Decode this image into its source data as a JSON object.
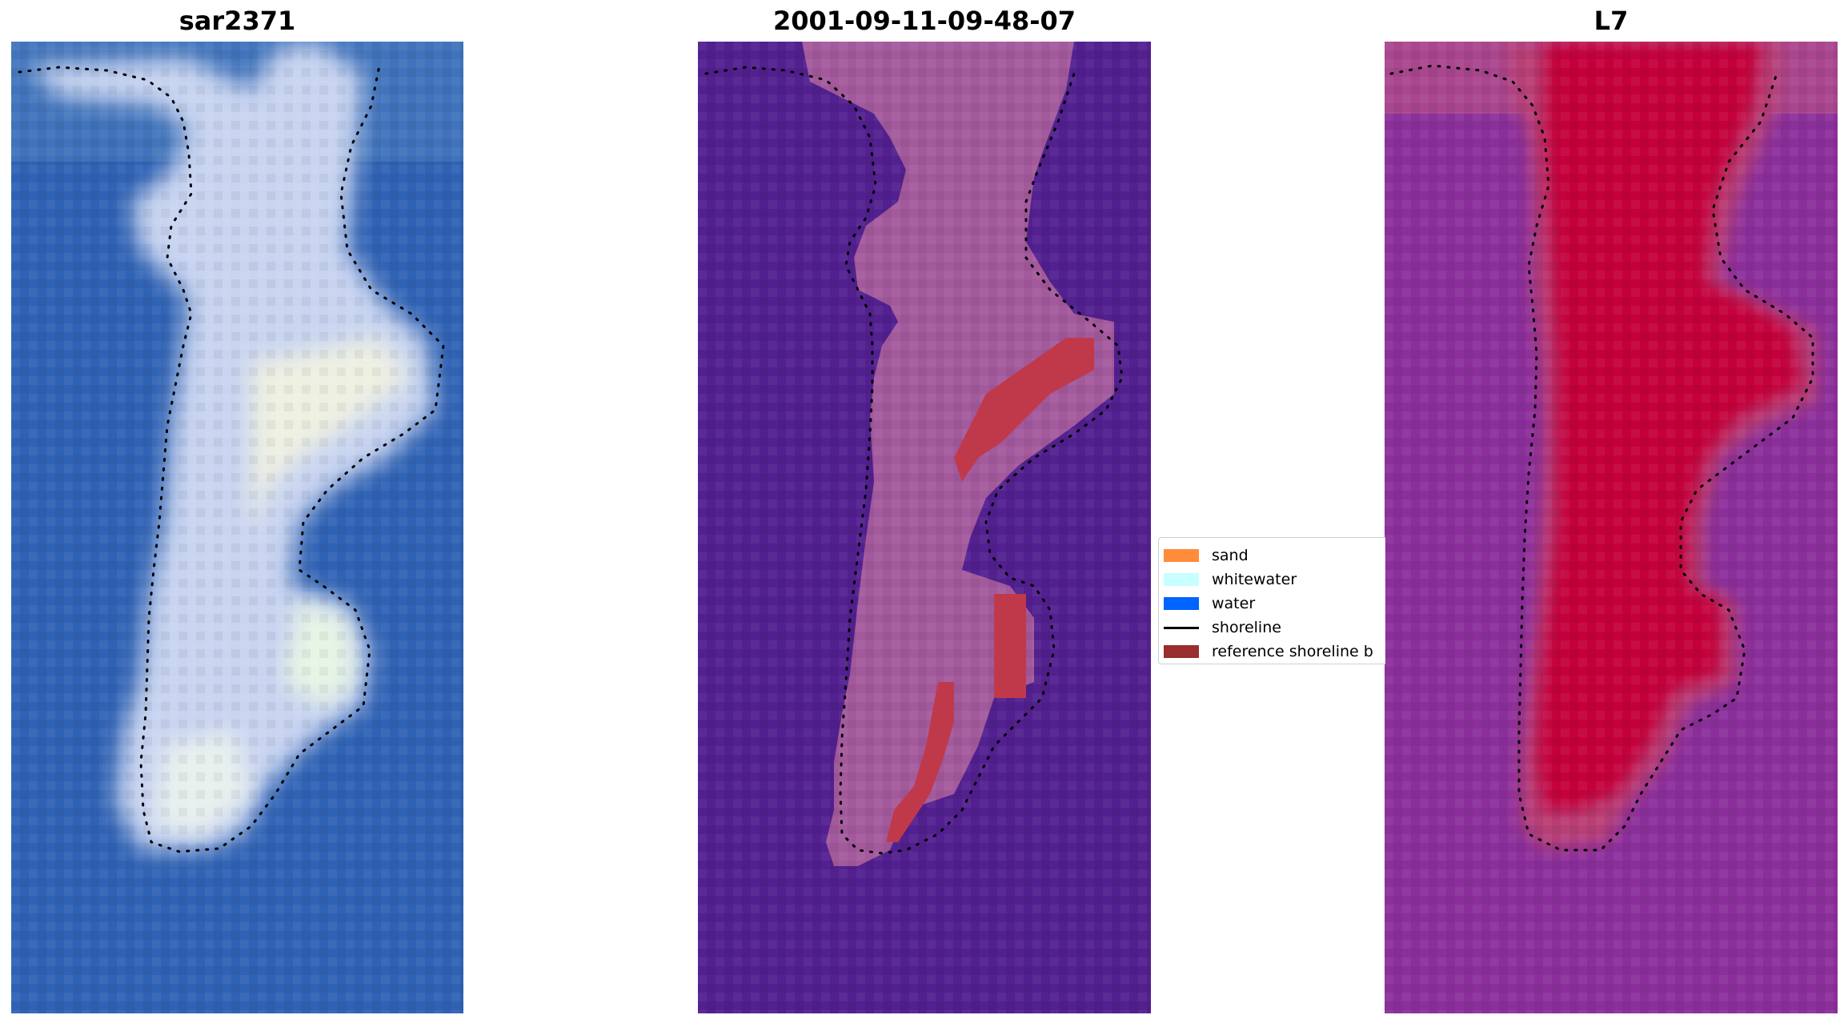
{
  "panels": [
    {
      "title": "sar2371"
    },
    {
      "title": "2001-09-11-09-48-07"
    },
    {
      "title": "L7"
    }
  ],
  "legend": {
    "items": [
      {
        "label": "sand",
        "kind": "patch",
        "color": "#ff8c3a"
      },
      {
        "label": "whitewater",
        "kind": "patch",
        "color": "#c8ffff"
      },
      {
        "label": "water",
        "kind": "patch",
        "color": "#0064ff"
      },
      {
        "label": "shoreline",
        "kind": "line",
        "color": "#000000"
      },
      {
        "label": "reference shoreline b",
        "kind": "patch",
        "color": "#9a2d2d"
      }
    ]
  },
  "colors": {
    "water_rgb": "#2f62b4",
    "land_rgb": "#c8d4f0",
    "classified_water": "#52208f",
    "classified_land": "#a35a9c",
    "reference_buffer": "#c0394a",
    "index_background": "#8b2f9b",
    "index_land": "#c4063a"
  }
}
